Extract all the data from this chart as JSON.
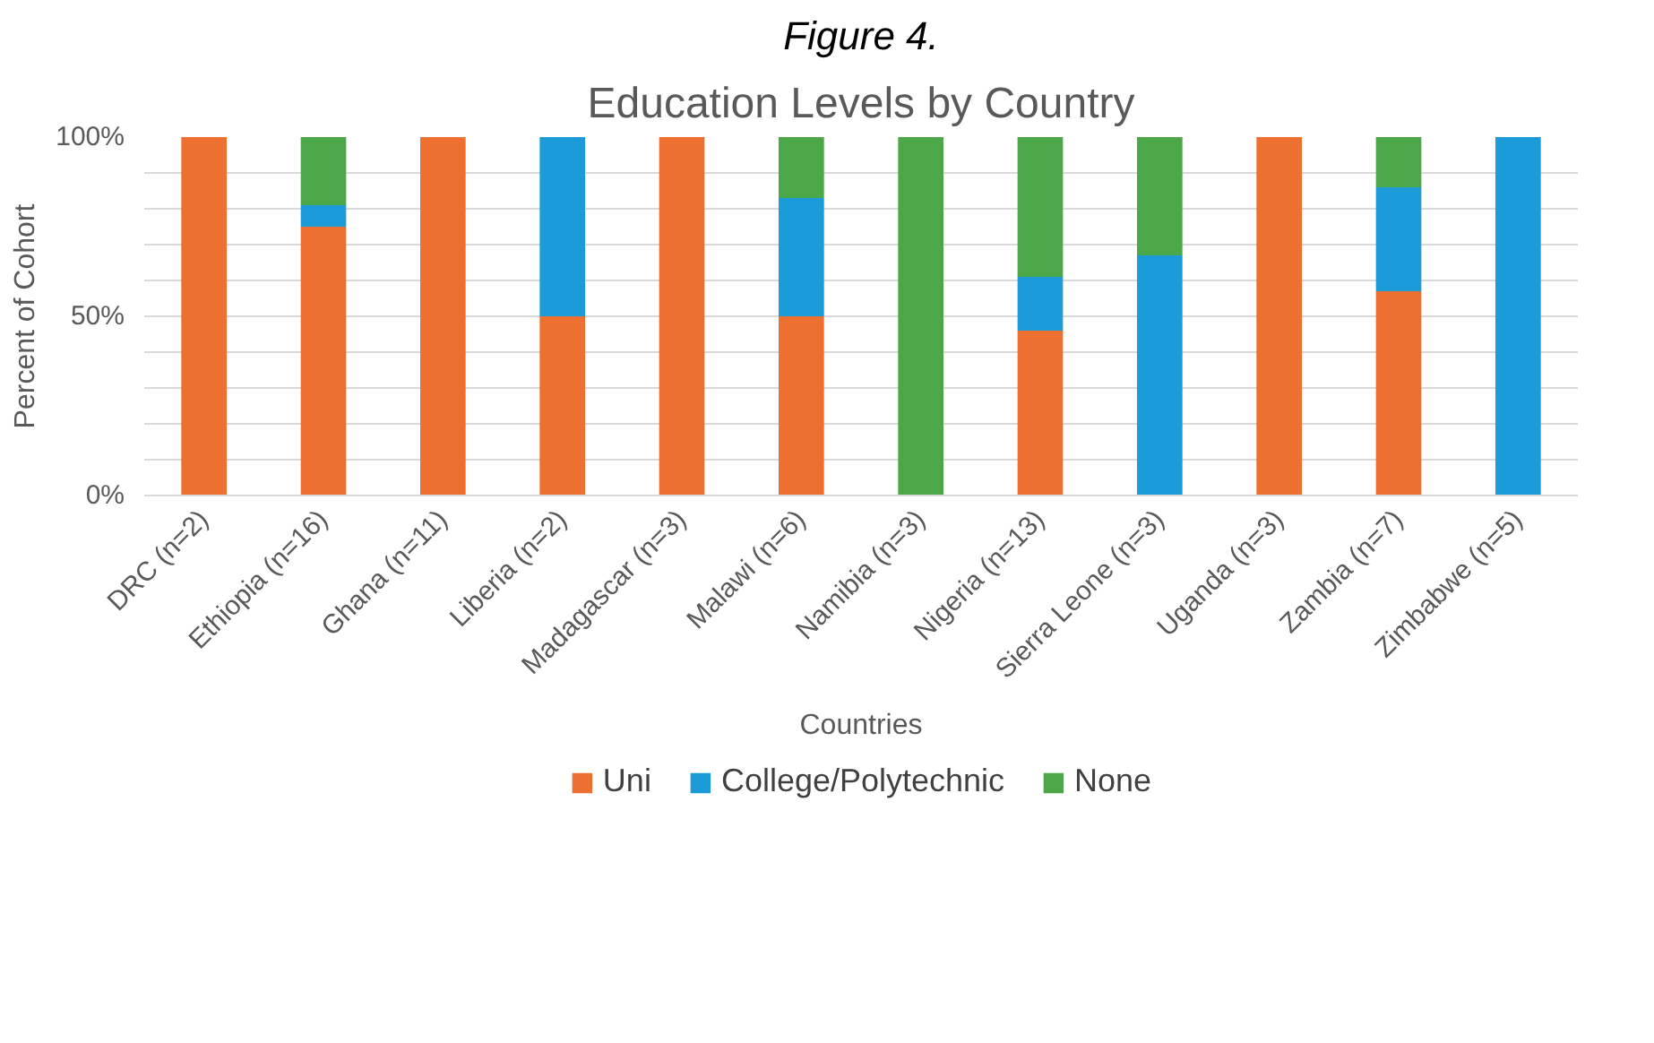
{
  "chart_data": {
    "type": "bar",
    "stacked": true,
    "title": "Figure 4.",
    "subtitle": "Education Levels by Country",
    "xlabel": "Countries",
    "ylabel": "Percent of Cohort",
    "categories": [
      "DRC (n=2)",
      "Ethiopia (n=16)",
      "Ghana (n=11)",
      "Liberia (n=2)",
      "Madagascar (n=3)",
      "Malawi (n=6)",
      "Namibia (n=3)",
      "Nigeria (n=13)",
      "Sierra Leone (n=3)",
      "Uganda (n=3)",
      "Zambia (n=7)",
      "Zimbabwe (n=5)"
    ],
    "series": [
      {
        "name": "Uni",
        "color": "#ed7031",
        "values": [
          100,
          75,
          100,
          50,
          100,
          50,
          0,
          46,
          0,
          100,
          57,
          0
        ]
      },
      {
        "name": "College/Polytechnic",
        "color": "#1b9bd7",
        "values": [
          0,
          6,
          0,
          50,
          0,
          33,
          0,
          15,
          67,
          0,
          29,
          100
        ]
      },
      {
        "name": "None",
        "color": "#4ba748",
        "values": [
          0,
          19,
          0,
          0,
          0,
          17,
          100,
          39,
          33,
          0,
          14,
          0
        ]
      }
    ],
    "ylim": [
      0,
      100
    ],
    "yticks": [
      {
        "value": 0,
        "label": "0%"
      },
      {
        "value": 10,
        "label": null
      },
      {
        "value": 20,
        "label": null
      },
      {
        "value": 30,
        "label": null
      },
      {
        "value": 40,
        "label": null
      },
      {
        "value": 50,
        "label": "50%"
      },
      {
        "value": 60,
        "label": null
      },
      {
        "value": 70,
        "label": null
      },
      {
        "value": 80,
        "label": null
      },
      {
        "value": 90,
        "label": null
      },
      {
        "value": 100,
        "label": "100%"
      }
    ],
    "grid": "y",
    "legend": "bottom"
  }
}
